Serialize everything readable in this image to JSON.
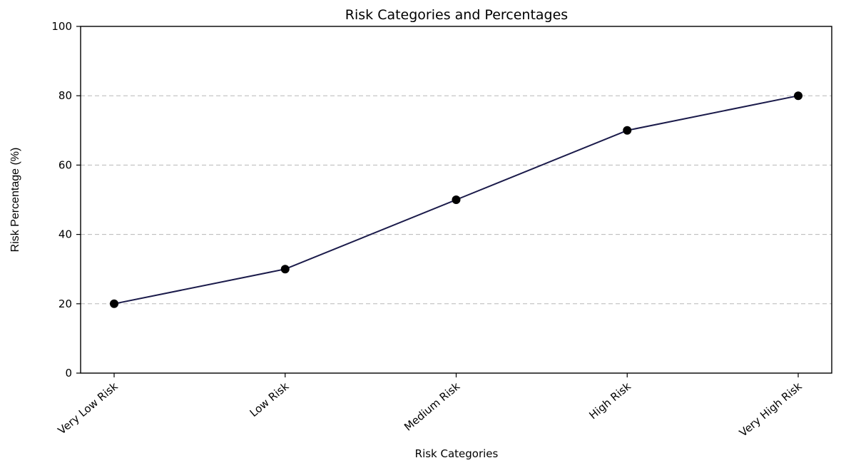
{
  "chart_data": {
    "type": "line",
    "title": "Risk Categories and Percentages",
    "xlabel": "Risk Categories",
    "ylabel": "Risk Percentage (%)",
    "categories": [
      "Very Low Risk",
      "Low Risk",
      "Medium Risk",
      "High Risk",
      "Very High Risk"
    ],
    "values": [
      20,
      30,
      50,
      70,
      80
    ],
    "ylim": [
      0,
      100
    ],
    "yticks": [
      0,
      20,
      40,
      60,
      80,
      100
    ],
    "grid": "y-dashed",
    "legend": "none",
    "colors": {
      "line": "#1a1a4a",
      "marker": "#000000",
      "grid": "#b8b8b8"
    }
  }
}
